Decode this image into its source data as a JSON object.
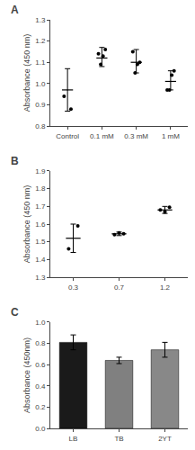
{
  "chart_data": [
    {
      "type": "strip",
      "title": "A",
      "categories": [
        "Control",
        "0.1 mM",
        "0.3 mM",
        "1 mM"
      ],
      "values": [
        0.97,
        1.12,
        1.1,
        1.01
      ],
      "errors_low": [
        0.1,
        0.04,
        0.05,
        0.04
      ],
      "errors_high": [
        0.1,
        0.05,
        0.06,
        0.05
      ],
      "points": [
        [
          0.94,
          0.88
        ],
        [
          1.14,
          1.09,
          1.13,
          1.16
        ],
        [
          1.15,
          1.05,
          1.09,
          1.1
        ],
        [
          0.97,
          0.97,
          1.04,
          1.06
        ]
      ],
      "ylabel": "Absorbance (450 nm)",
      "ylim": [
        0.8,
        1.3
      ],
      "yticks": [
        0.8,
        0.9,
        {
          "value": 1.0,
          "label": "1.0"
        },
        1.1,
        1.2,
        1.3
      ],
      "color": "#000000",
      "grid": false
    },
    {
      "type": "strip",
      "title": "B",
      "categories": [
        "0.3",
        "0.7",
        "1.2"
      ],
      "values": [
        1.52,
        1.545,
        1.68
      ],
      "errors_low": [
        0.08,
        0.01,
        0.02
      ],
      "errors_high": [
        0.08,
        0.01,
        0.02
      ],
      "points": [
        [
          1.46,
          1.59
        ],
        [
          1.54,
          1.55,
          1.545
        ],
        [
          1.68,
          1.67,
          1.695
        ]
      ],
      "ylabel": "Absorbance (450 nm)",
      "ylim": [
        1.3,
        1.9
      ],
      "yticks": [
        1.3,
        1.4,
        1.5,
        1.6,
        1.7,
        1.8,
        1.9
      ],
      "color": "#000000",
      "grid": false
    },
    {
      "type": "bar",
      "title": "C",
      "categories": [
        "LB",
        "TB",
        "2YT"
      ],
      "values": [
        0.81,
        0.64,
        0.74
      ],
      "errors": [
        0.07,
        0.03,
        0.07
      ],
      "colors": [
        "#1a1a1a",
        "#808080",
        "#888888"
      ],
      "ylabel": "Absorbance (450nm)",
      "ylim": [
        0.0,
        1.0
      ],
      "yticks": [
        {
          "value": 0.0,
          "label": "0.0"
        },
        0.2,
        0.4,
        0.6,
        0.8,
        {
          "value": 1.0,
          "label": "1.0"
        }
      ],
      "grid": false
    }
  ]
}
